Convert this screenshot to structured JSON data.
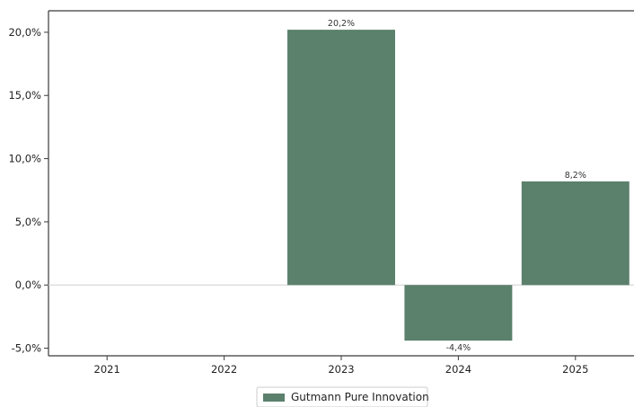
{
  "chart_data": {
    "type": "bar",
    "categories": [
      "2021",
      "2022",
      "2023",
      "2024",
      "2025"
    ],
    "series": [
      {
        "name": "Gutmann Pure Innovation",
        "values": [
          null,
          null,
          20.2,
          -4.4,
          8.2
        ],
        "labels": [
          "",
          "",
          "20,2%",
          "-4,4%",
          "8,2%"
        ],
        "color": "#5b806c"
      }
    ],
    "yticks": [
      20.0,
      15.0,
      10.0,
      5.0,
      0.0,
      -5.0
    ],
    "ytick_labels": [
      "20,0%",
      "15,0%",
      "10,0%",
      "5,0%",
      "0,0%",
      "-5,0%"
    ],
    "ylim": [
      -5.6,
      21.7
    ],
    "grid": false,
    "zero_line": true,
    "legend_position": "bottom-center",
    "title": "",
    "xlabel": "",
    "ylabel": ""
  }
}
